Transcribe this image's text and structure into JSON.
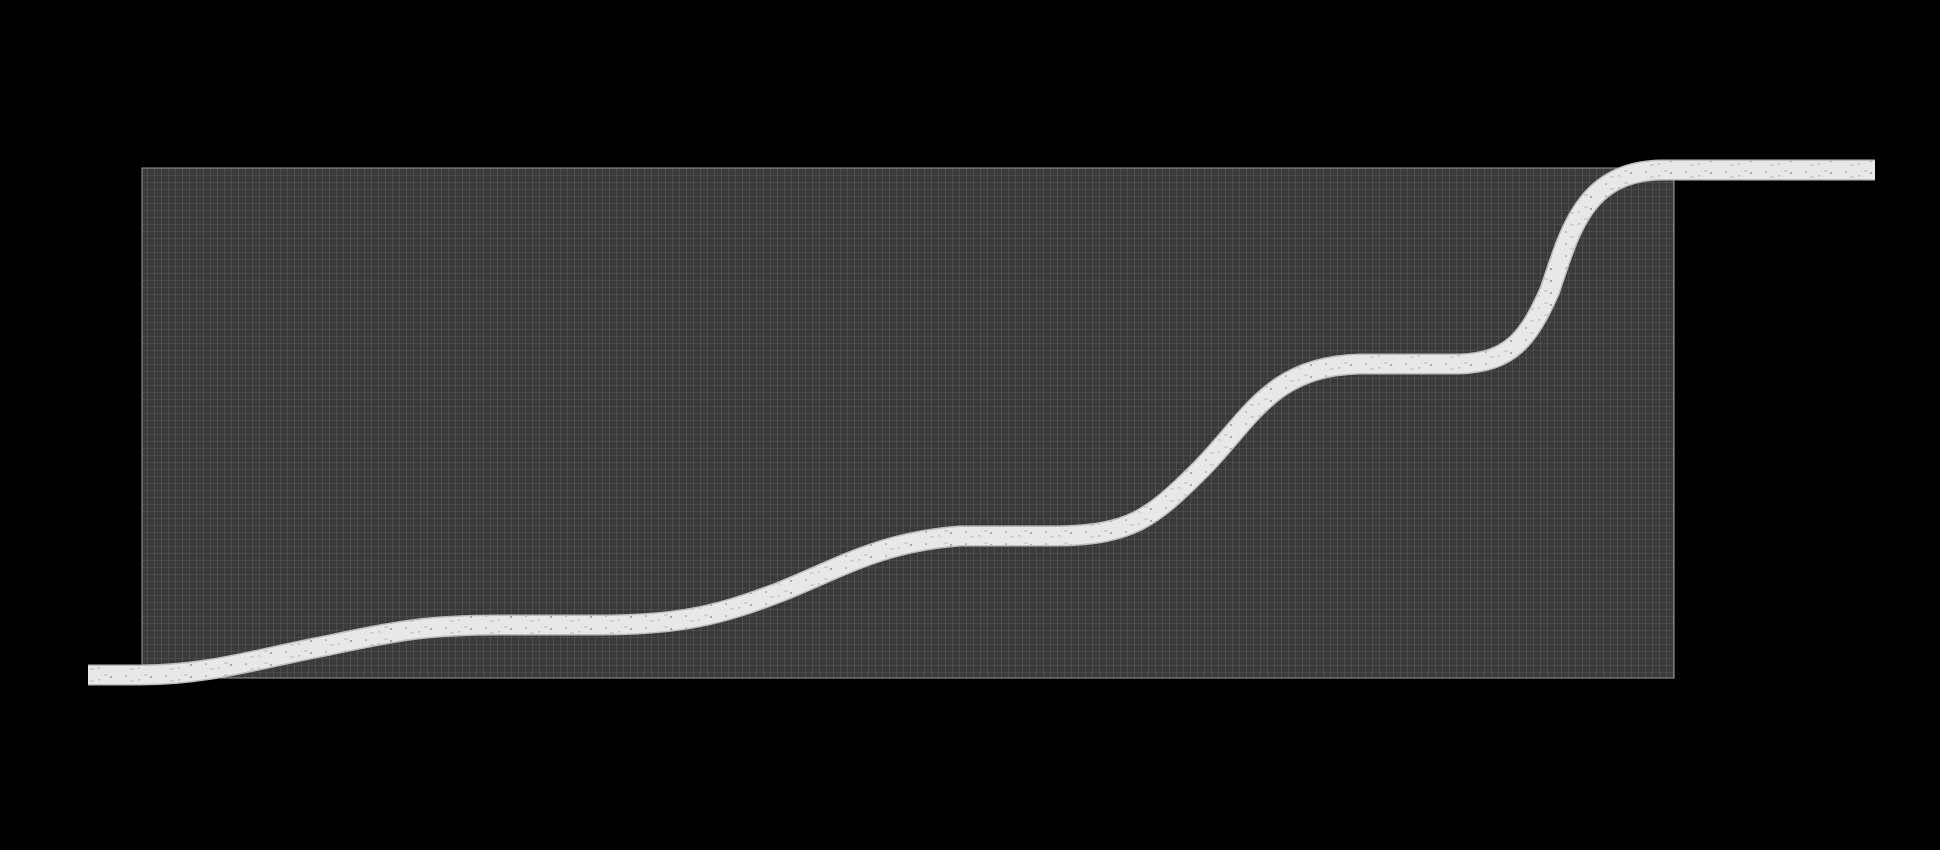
{
  "diagram": {
    "description_visible_text": "",
    "colors": {
      "background": "#000000",
      "mesh_fill": "#3a3a3a",
      "mesh_line": "#8a8a8a",
      "channel_fill": "#e8e8e8",
      "channel_edge": "#bdbdbd",
      "channel_speckle": "#7a7a7a"
    },
    "elements": [
      {
        "name": "mesh-grid-region",
        "kind": "grid"
      },
      {
        "name": "staircase-channel",
        "kind": "curved-strip"
      }
    ]
  }
}
